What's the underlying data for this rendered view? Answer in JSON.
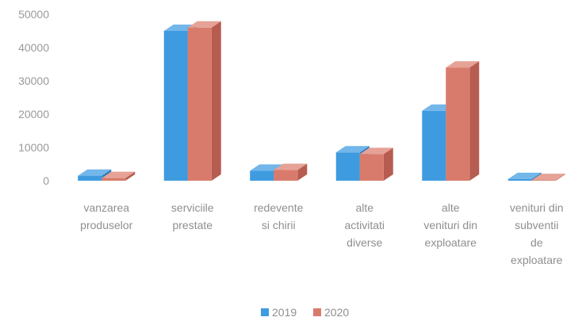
{
  "chart_data": {
    "type": "bar",
    "style": "3d-column",
    "categories": [
      [
        "vanzarea",
        "produselor"
      ],
      [
        "serviciile",
        "prestate"
      ],
      [
        "redevente",
        "si chirii"
      ],
      [
        "alte",
        "activitati",
        "diverse"
      ],
      [
        "alte",
        "venituri din",
        "exploatare"
      ],
      [
        "venituri din",
        "subventii",
        "de",
        "exploatare"
      ]
    ],
    "series": [
      {
        "name": "2019",
        "values": [
          1500,
          45000,
          3000,
          8500,
          21000,
          500
        ]
      },
      {
        "name": "2020",
        "values": [
          800,
          46000,
          3200,
          8000,
          34000,
          200
        ]
      }
    ],
    "yticks": [
      "0",
      "10000",
      "20000",
      "30000",
      "40000",
      "50000"
    ],
    "ylim": [
      0,
      50000
    ],
    "grid": false,
    "legend_position": "bottom",
    "colors": {
      "2019": {
        "front": "#3f9be0",
        "side": "#2b7bbd",
        "top": "#72b6ea"
      },
      "2020": {
        "front": "#d97b6c",
        "side": "#b65c50",
        "top": "#e6a296"
      }
    }
  }
}
